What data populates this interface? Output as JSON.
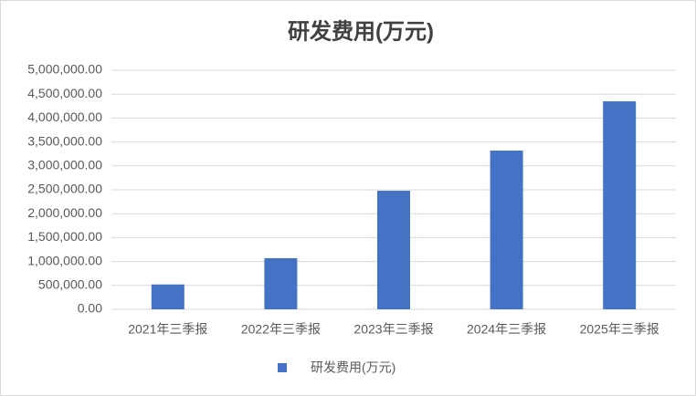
{
  "chart_data": {
    "type": "bar",
    "title": "研发费用(万元)",
    "categories": [
      "2021年三季报",
      "2022年三季报",
      "2023年三季报",
      "2024年三季报",
      "2025年三季报"
    ],
    "series": [
      {
        "name": "研发费用(万元)",
        "color": "#4472c4",
        "values": [
          520000,
          1070000,
          2480000,
          3320000,
          4350000
        ]
      }
    ],
    "ylim": [
      0,
      5000000
    ],
    "yticks": [
      {
        "value": 0,
        "label": "0.00"
      },
      {
        "value": 500000,
        "label": "500,000.00"
      },
      {
        "value": 1000000,
        "label": "1,000,000.00"
      },
      {
        "value": 1500000,
        "label": "1,500,000.00"
      },
      {
        "value": 2000000,
        "label": "2,000,000.00"
      },
      {
        "value": 2500000,
        "label": "2,500,000.00"
      },
      {
        "value": 3000000,
        "label": "3,000,000.00"
      },
      {
        "value": 3500000,
        "label": "3,500,000.00"
      },
      {
        "value": 4000000,
        "label": "4,000,000.00"
      },
      {
        "value": 4500000,
        "label": "4,500,000.00"
      },
      {
        "value": 5000000,
        "label": "5,000,000.00"
      }
    ],
    "grid": true,
    "legend": "bottom"
  }
}
